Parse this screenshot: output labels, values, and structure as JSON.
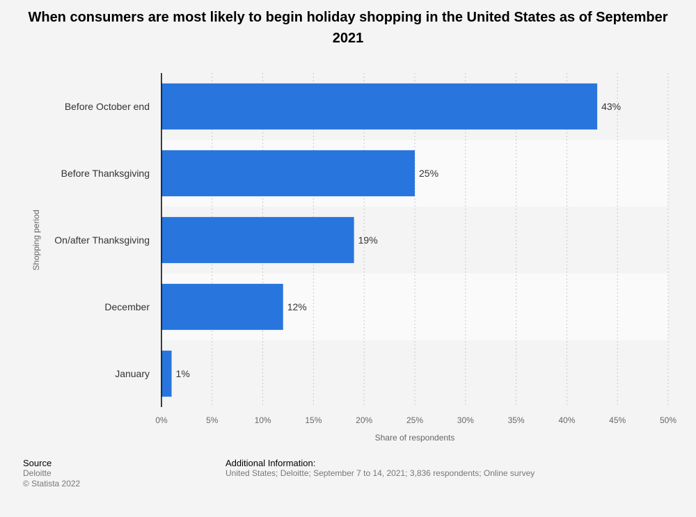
{
  "chart_data": {
    "type": "bar",
    "orientation": "horizontal",
    "title": "When consumers are most likely to begin holiday shopping in the United States as of September 2021",
    "categories": [
      "Before October end",
      "Before Thanksgiving",
      "On/after Thanksgiving",
      "December",
      "January"
    ],
    "values": [
      43,
      25,
      19,
      12,
      1
    ],
    "value_labels": [
      "43%",
      "25%",
      "19%",
      "12%",
      "1%"
    ],
    "xlabel": "Share of respondents",
    "ylabel": "Shopping period",
    "xlim": [
      0,
      50
    ],
    "x_ticks": [
      "0%",
      "5%",
      "10%",
      "15%",
      "20%",
      "25%",
      "30%",
      "35%",
      "40%",
      "45%",
      "50%"
    ],
    "grid": true,
    "bar_color": "#2876dd"
  },
  "footer": {
    "source_heading": "Source",
    "source_name": "Deloitte",
    "copyright": "© Statista 2022",
    "info_heading": "Additional Information:",
    "info_text": "United States; Deloitte; September 7 to 14, 2021; 3,836 respondents; Online survey"
  }
}
